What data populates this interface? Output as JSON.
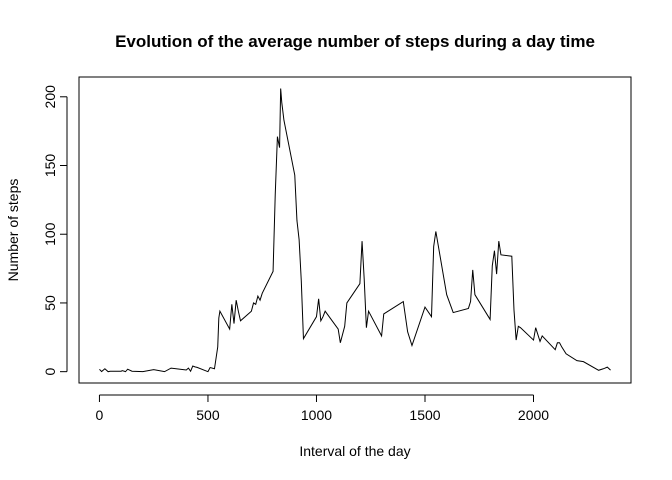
{
  "chart_data": {
    "type": "line",
    "title": "Evolution of the average number of steps during a day time",
    "x_label": "Interval of the day",
    "y_label": "Number of steps",
    "x": [
      0,
      10,
      25,
      40,
      50,
      100,
      105,
      115,
      120,
      130,
      150,
      200,
      250,
      300,
      330,
      400,
      410,
      420,
      430,
      440,
      450,
      500,
      510,
      530,
      545,
      550,
      555,
      600,
      610,
      620,
      630,
      640,
      650,
      700,
      710,
      720,
      730,
      740,
      750,
      800,
      810,
      820,
      830,
      835,
      840,
      850,
      900,
      910,
      920,
      930,
      940,
      1000,
      1010,
      1020,
      1030,
      1040,
      1100,
      1110,
      1130,
      1140,
      1200,
      1210,
      1220,
      1230,
      1240,
      1300,
      1310,
      1400,
      1420,
      1440,
      1500,
      1530,
      1540,
      1550,
      1600,
      1630,
      1700,
      1710,
      1720,
      1730,
      1800,
      1810,
      1820,
      1830,
      1840,
      1850,
      1900,
      1910,
      1920,
      1930,
      1940,
      2000,
      2010,
      2030,
      2040,
      2100,
      2110,
      2120,
      2130,
      2150,
      2200,
      2230,
      2300,
      2320,
      2330,
      2340,
      2355
    ],
    "series": [
      {
        "name": "steps",
        "color": "#000000",
        "values": [
          1.7,
          0.1,
          2.1,
          0,
          0.3,
          0.3,
          0.7,
          0.3,
          0,
          1.8,
          0.3,
          0,
          1.5,
          0,
          2.6,
          1.2,
          2.6,
          0.3,
          4.1,
          3.5,
          3.1,
          0,
          3.0,
          2.1,
          18,
          39,
          44,
          31,
          49,
          35,
          52,
          44,
          37,
          44,
          50,
          49,
          55,
          52,
          57,
          73,
          129,
          171,
          163,
          206,
          196,
          183,
          143,
          110,
          96,
          66,
          24,
          40,
          53,
          37,
          40,
          44,
          31,
          21,
          33,
          50,
          64,
          95,
          67,
          32,
          44,
          26,
          42,
          51,
          29,
          19,
          47,
          40,
          91,
          102,
          56,
          43,
          46,
          51,
          74,
          56,
          38,
          77,
          88,
          71,
          95,
          85,
          84,
          45,
          23,
          33,
          32,
          23,
          32,
          22,
          26,
          16,
          21,
          21,
          18,
          13,
          8,
          7.3,
          1.0,
          2,
          2.6,
          3.3,
          1.1
        ]
      }
    ],
    "xlim": [
      -94.2,
      2449.2
    ],
    "ylim": [
      -8.25,
      214.4
    ],
    "xticks": [
      0,
      500,
      1000,
      1500,
      2000
    ],
    "yticks": [
      0,
      50,
      100,
      150,
      200
    ]
  }
}
